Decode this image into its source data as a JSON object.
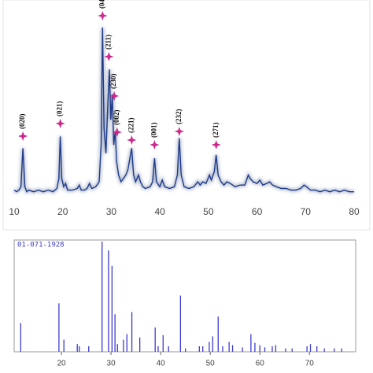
{
  "chart_data": [
    {
      "type": "line",
      "x": [
        10,
        10.5,
        11,
        11.4,
        11.8,
        12.2,
        12.6,
        13,
        14,
        15,
        16,
        17,
        18,
        18.8,
        19.2,
        19.5,
        19.8,
        20.2,
        20.6,
        21,
        22,
        23,
        23.4,
        23.8,
        24.5,
        25,
        25.5,
        26,
        26.8,
        27.5,
        27.9,
        28.2,
        28.5,
        28.9,
        29.3,
        29.6,
        29.9,
        30.2,
        30.5,
        30.8,
        31.1,
        31.5,
        32,
        32.5,
        33,
        33.4,
        34.2,
        34.6,
        35,
        35.6,
        36,
        36.5,
        37,
        38,
        38.5,
        38.9,
        39.3,
        40,
        40.5,
        41,
        42,
        43,
        43.6,
        44,
        44.4,
        45,
        46,
        47,
        47.8,
        48.3,
        48.8,
        49.5,
        50.2,
        50.6,
        51.2,
        51.6,
        52,
        52.6,
        53.2,
        53.8,
        54.5,
        55.5,
        56.5,
        57.5,
        58.2,
        58.6,
        59.2,
        60,
        60.6,
        61.2,
        62,
        62.6,
        63.2,
        64,
        65,
        66,
        67,
        68,
        69,
        69.7,
        70.2,
        71,
        72,
        73,
        74,
        75,
        76,
        77,
        78,
        79,
        80
      ],
      "series": [
        {
          "color": "#1f3a8a",
          "values": [
            3,
            2,
            3,
            5,
            28,
            5,
            2,
            3,
            2,
            3,
            2,
            3,
            2,
            4,
            10,
            35,
            10,
            5,
            7,
            3,
            3,
            4,
            6,
            3,
            3,
            4,
            7,
            4,
            5,
            8,
            30,
            100,
            40,
            25,
            55,
            75,
            45,
            60,
            30,
            38,
            20,
            12,
            8,
            10,
            12,
            15,
            28,
            12,
            8,
            12,
            8,
            5,
            4,
            5,
            8,
            22,
            8,
            5,
            9,
            5,
            4,
            5,
            12,
            34,
            12,
            5,
            4,
            5,
            8,
            6,
            8,
            7,
            12,
            9,
            14,
            24,
            12,
            8,
            6,
            8,
            7,
            5,
            6,
            6,
            12,
            10,
            8,
            7,
            9,
            6,
            7,
            8,
            6,
            5,
            4,
            4,
            3,
            3,
            4,
            6,
            5,
            3,
            3,
            2,
            3,
            2,
            3,
            2,
            3,
            2,
            2
          ]
        }
      ],
      "xlim": [
        10,
        80
      ],
      "xticks": [
        10,
        20,
        30,
        40,
        50,
        60,
        70,
        80
      ],
      "ylim": [
        0,
        100
      ],
      "annotations": [
        {
          "text": "(020)",
          "x": 11.8
        },
        {
          "text": "(021)",
          "x": 19.5
        },
        {
          "text": "(04",
          "x": 28.2
        },
        {
          "text": "(211)",
          "x": 29.5
        },
        {
          "text": "(230)",
          "x": 30.6
        },
        {
          "text": "(002)",
          "x": 31.2
        },
        {
          "text": "(221)",
          "x": 34.2
        },
        {
          "text": "(001)",
          "x": 38.9
        },
        {
          "text": "(232)",
          "x": 44
        },
        {
          "text": "(271)",
          "x": 51.6
        }
      ],
      "marker_color": "#cc2a8a"
    },
    {
      "type": "stick",
      "title": "01-071-1928",
      "color": "#3b3bd0",
      "x": [
        11.8,
        19.5,
        20.5,
        23.2,
        23.6,
        25.5,
        28.2,
        29.5,
        30.2,
        30.8,
        31.3,
        32.5,
        33.2,
        34.2,
        35.8,
        38.9,
        39.5,
        40.5,
        41.6,
        44,
        45,
        47.8,
        48.5,
        49.8,
        50.5,
        51.6,
        52.5,
        53.8,
        54.5,
        56.5,
        58.2,
        59,
        60,
        61,
        62.5,
        63.2,
        65.2,
        66.5,
        69.5,
        70.2,
        71.5,
        73,
        75,
        76.5
      ],
      "values": [
        26,
        44,
        11,
        7,
        5,
        5,
        100,
        92,
        78,
        34,
        7,
        11,
        16,
        36,
        13,
        22,
        5,
        15,
        5,
        51,
        3,
        5,
        5,
        9,
        14,
        32,
        5,
        9,
        6,
        4,
        16,
        8,
        6,
        4,
        5,
        6,
        3,
        3,
        5,
        7,
        5,
        3,
        3,
        3
      ],
      "xlim": [
        10,
        79
      ],
      "xticks": [
        20,
        30,
        40,
        50,
        60,
        70
      ],
      "ylim": [
        0,
        100
      ]
    }
  ]
}
